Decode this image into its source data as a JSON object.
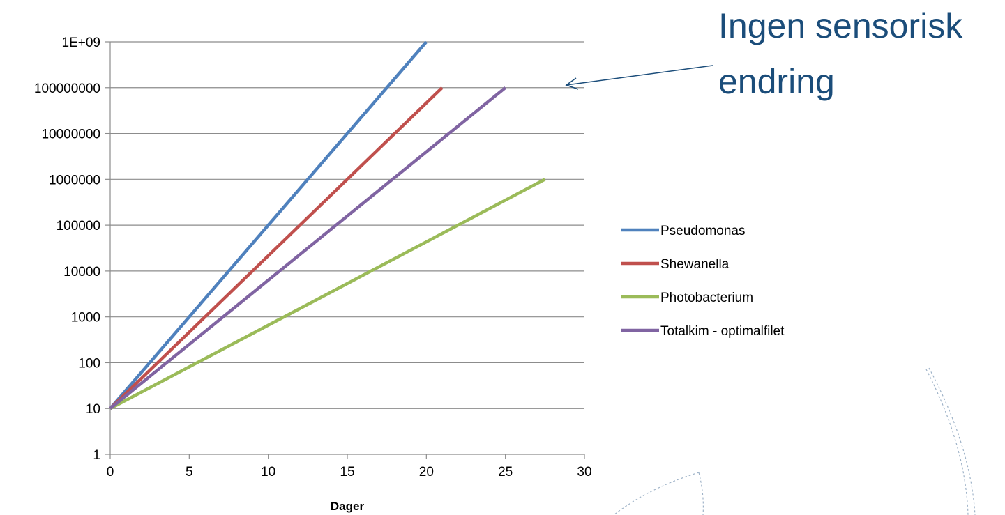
{
  "annotation": {
    "line1": "Ingen sensorisk",
    "line2": "endring",
    "color": "#1b4d7a"
  },
  "chart_data": {
    "type": "line",
    "xlabel": "Dager",
    "ylabel": "",
    "ylog": true,
    "xlim": [
      0,
      30
    ],
    "ylim": [
      1,
      1000000000
    ],
    "x_ticks": [
      "0",
      "5",
      "10",
      "15",
      "20",
      "25",
      "30"
    ],
    "y_ticks": [
      "1",
      "10",
      "100",
      "1000",
      "10000",
      "100000",
      "1000000",
      "10000000",
      "100000000",
      "1E+09"
    ],
    "grid": true,
    "legend": "right",
    "series": [
      {
        "name": "Pseudomonas",
        "color": "#4f81bd",
        "x": [
          0,
          20
        ],
        "y": [
          10,
          1000000000
        ]
      },
      {
        "name": "Shewanella",
        "color": "#c0504d",
        "x": [
          0,
          21
        ],
        "y": [
          10,
          100000000
        ]
      },
      {
        "name": "Photobacterium",
        "color": "#9bbb59",
        "x": [
          0,
          27.5
        ],
        "y": [
          10,
          1000000
        ]
      },
      {
        "name": "Totalkim - optimalfilet",
        "color": "#8064a2",
        "x": [
          0,
          25
        ],
        "y": [
          10,
          100000000
        ]
      }
    ]
  }
}
